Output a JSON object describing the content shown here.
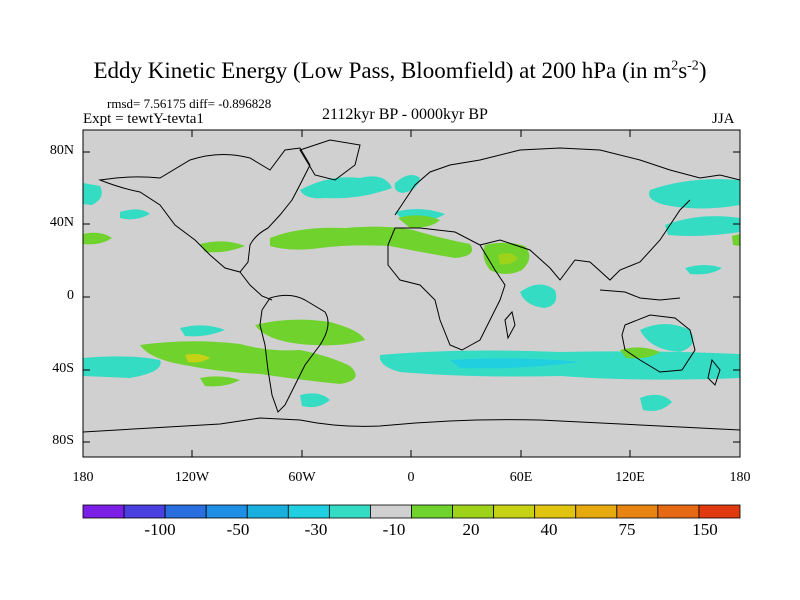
{
  "title": {
    "main": "Eddy Kinetic Energy (Low Pass, Bloomfield) at 200 hPa (in m",
    "sup1": "2",
    "mid": "s",
    "sup2": "-2",
    "end": ")"
  },
  "subtitle": {
    "stats": "rmsd= 7.56175 diff= -0.896828",
    "experiment": "Expt = tewtY-tevta1",
    "period": "2112kyr BP - 0000kyr BP",
    "season": "JJA"
  },
  "map": {
    "projection": "cylindrical-equidistant",
    "background_color": "#d0d0d0",
    "coastline_color": "#000000",
    "lat_ticks": [
      "80N",
      "40N",
      "0",
      "40S",
      "80S"
    ],
    "lon_ticks": [
      "180",
      "120W",
      "60W",
      "0",
      "60E",
      "120E",
      "180"
    ]
  },
  "colorbar": {
    "colors": [
      "#7b1ee6",
      "#4a3fe0",
      "#2a6fe0",
      "#1d90e6",
      "#19b0e0",
      "#20cfe0",
      "#35dcc4",
      "#d0d0d0",
      "#6fd22d",
      "#9fd31a",
      "#c8d215",
      "#e0c40f",
      "#e6a90e",
      "#e88512",
      "#e66a14",
      "#e23a10"
    ],
    "labels": [
      "-100",
      "-50",
      "-30",
      "-10",
      "20",
      "40",
      "75",
      "150"
    ]
  },
  "colors": {
    "cyan_anomaly": "#35dcc4",
    "blue_anomaly": "#20cfe0",
    "green_anomaly": "#6fd22d",
    "lime_anomaly": "#9fd31a",
    "yellow_anomaly": "#c8d215"
  }
}
